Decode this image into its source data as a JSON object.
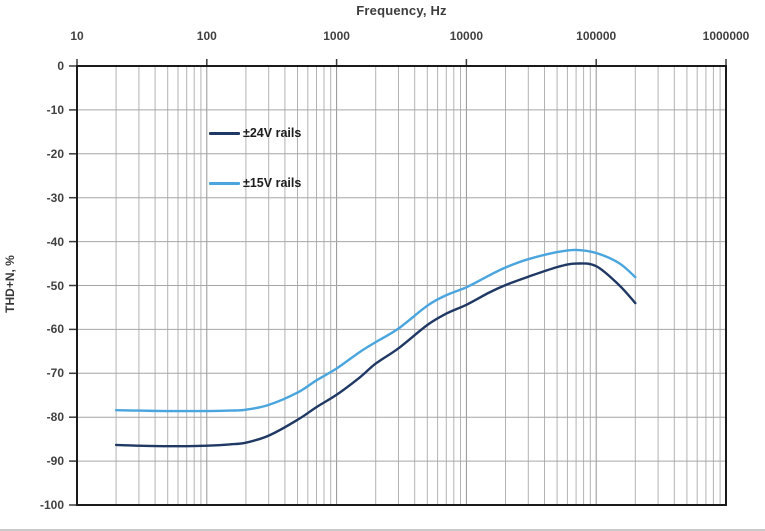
{
  "chart_data": {
    "type": "line",
    "title": "Frequency, Hz",
    "xlabel": "Frequency, Hz",
    "ylabel": "THD+N, %",
    "x_scale": "log",
    "xlim": [
      10,
      1000000
    ],
    "ylim": [
      -100,
      0
    ],
    "x_ticks": [
      10,
      100,
      1000,
      10000,
      100000,
      1000000
    ],
    "x_tick_labels": [
      "10",
      "100",
      "1000",
      "10000",
      "100000",
      "1000000"
    ],
    "y_ticks": [
      0,
      -10,
      -20,
      -30,
      -40,
      -50,
      -60,
      -70,
      -80,
      -90,
      -100
    ],
    "y_tick_labels": [
      "0",
      "-10",
      "-20",
      "-30",
      "-40",
      "-50",
      "-60",
      "-70",
      "-80",
      "-90",
      "-100"
    ],
    "grid": "major-y, major+minor-x (log minors 2-9 per decade)",
    "legend_position": "inside upper-left",
    "x": [
      20,
      30,
      50,
      70,
      100,
      150,
      200,
      300,
      500,
      700,
      1000,
      1500,
      2000,
      3000,
      5000,
      7000,
      10000,
      15000,
      20000,
      30000,
      50000,
      70000,
      100000,
      150000,
      200000
    ],
    "series": [
      {
        "name": "±24V rails",
        "color": "#1f3864",
        "values": [
          -86.3,
          -86.5,
          -86.6,
          -86.6,
          -86.5,
          -86.2,
          -85.8,
          -84.2,
          -80.6,
          -77.7,
          -74.9,
          -71.0,
          -67.8,
          -64.3,
          -59.0,
          -56.4,
          -54.4,
          -51.6,
          -49.9,
          -48.0,
          -45.8,
          -45.0,
          -45.6,
          -49.9,
          -54.0
        ]
      },
      {
        "name": "±15V rails",
        "color": "#4aa5de",
        "values": [
          -78.4,
          -78.5,
          -78.6,
          -78.6,
          -78.6,
          -78.5,
          -78.3,
          -77.2,
          -74.4,
          -71.6,
          -68.9,
          -65.2,
          -62.9,
          -59.8,
          -54.6,
          -52.2,
          -50.4,
          -47.7,
          -45.9,
          -44.0,
          -42.4,
          -41.9,
          -42.6,
          -44.9,
          -48.1
        ]
      }
    ]
  },
  "style": {
    "plot_border_color": "#1a1a1a",
    "grid_major_color": "#949494",
    "grid_minor_color": "#b3b3b3",
    "horizontal_grid_color": "#a6a6a6",
    "tick_mark_color": "#3a3a3a",
    "background": "#ffffff"
  }
}
